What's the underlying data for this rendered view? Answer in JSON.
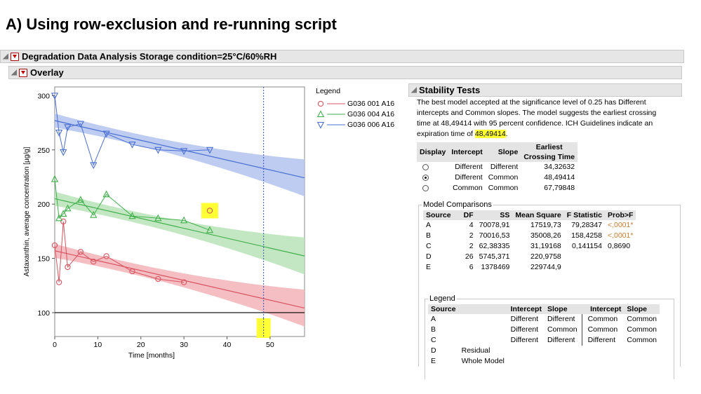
{
  "slide_title": "A) Using row-exclusion and re-running script",
  "report": {
    "title": "Degradation Data Analysis Storage condition=25°C/60%RH",
    "overlay_title": "Overlay"
  },
  "chart_data": {
    "type": "scatter",
    "xlabel": "Time [months]",
    "ylabel": "Astaxanthin, average concentration [µg/g]",
    "xlim": [
      0,
      58
    ],
    "ylim": [
      78,
      308
    ],
    "x_ticks": [
      "0",
      "10",
      "20",
      "30",
      "40",
      "50"
    ],
    "y_ticks": [
      "100",
      "150",
      "200",
      "250",
      "300"
    ],
    "reference_line_y": 100,
    "crossing_time_line_x": 48.49414,
    "highlighted_point": {
      "x": 36,
      "y": 194
    },
    "legend_title": "Legend",
    "legend_position": "right",
    "series": [
      {
        "name": "G036 001 A16",
        "color": "#d9535f",
        "band": "#f2b3b8",
        "marker": "circle",
        "x": [
          0,
          1,
          2,
          3,
          6,
          9,
          12,
          18,
          24,
          30
        ],
        "y": [
          162,
          128,
          184,
          142,
          156,
          147,
          152,
          138,
          131,
          128
        ],
        "fit": {
          "intercept": 157,
          "slope": -0.91
        }
      },
      {
        "name": "G036 004 A16",
        "color": "#3fb04a",
        "band": "#b9e3b8",
        "marker": "triangle-up",
        "x": [
          0,
          1,
          2,
          3,
          6,
          9,
          12,
          18,
          24,
          30,
          36
        ],
        "y": [
          223,
          187,
          191,
          196,
          204,
          190,
          209,
          189,
          187,
          185,
          176
        ],
        "fit": {
          "intercept": 205,
          "slope": -0.91
        }
      },
      {
        "name": "G036 006 A16",
        "color": "#4a6fd3",
        "band": "#b3c3ee",
        "marker": "triangle-down",
        "x": [
          0,
          1,
          2,
          3,
          6,
          9,
          12,
          18,
          24,
          30,
          36
        ],
        "y": [
          300,
          266,
          248,
          271,
          274,
          236,
          265,
          255,
          250,
          249,
          250
        ],
        "fit": {
          "intercept": 277,
          "slope": -0.91
        }
      }
    ]
  },
  "stability": {
    "title": "Stability Tests",
    "description_before": "The best model accepted at the significance level of 0.25 has Different intercepts and Common slopes. The model suggests the earliest crossing time at 48,49414 with 95 percent confidence. ICH Guidelines indicate an expiration time of ",
    "highlight_value": "48,49414",
    "description_after": ".",
    "table_headers": [
      "Display",
      "Intercept",
      "Slope",
      "Earliest",
      "Crossing Time"
    ],
    "rows": [
      {
        "intercept": "Different",
        "slope": "Different",
        "time": "34,32632",
        "selected": false
      },
      {
        "intercept": "Different",
        "slope": "Common",
        "time": "48,49414",
        "selected": true
      },
      {
        "intercept": "Common",
        "slope": "Common",
        "time": "67,79848",
        "selected": false
      }
    ]
  },
  "model_comparisons": {
    "title": "Model Comparisons",
    "headers": [
      "Source",
      "DF",
      "SS",
      "Mean Square",
      "F Statistic",
      "Prob>F"
    ],
    "rows": [
      {
        "source": "A",
        "df": "4",
        "ss": "70078,91",
        "ms": "17519,73",
        "f": "79,28347",
        "p": "<,0001*"
      },
      {
        "source": "B",
        "df": "2",
        "ss": "70016,53",
        "ms": "35008,26",
        "f": "158,4258",
        "p": "<,0001*"
      },
      {
        "source": "C",
        "df": "2",
        "ss": "62,38335",
        "ms": "31,19168",
        "f": "0,141154",
        "p": "0,8690"
      },
      {
        "source": "D",
        "df": "26",
        "ss": "5745,371",
        "ms": "220,9758",
        "f": "",
        "p": ""
      },
      {
        "source": "E",
        "df": "6",
        "ss": "1378469",
        "ms": "229744,9",
        "f": "",
        "p": ""
      }
    ]
  },
  "mc_legend": {
    "title": "Legend",
    "headers": [
      "Source",
      "",
      "Intercept",
      "Slope",
      "Intercept",
      "Slope"
    ],
    "rows": [
      {
        "source": "A",
        "label": "",
        "i1": "Different",
        "s1": "Different",
        "i2": "Common",
        "s2": "Common"
      },
      {
        "source": "B",
        "label": "",
        "i1": "Different",
        "s1": "Common",
        "i2": "Common",
        "s2": "Common"
      },
      {
        "source": "C",
        "label": "",
        "i1": "Different",
        "s1": "Different",
        "i2": "Different",
        "s2": "Common"
      },
      {
        "source": "D",
        "label": "Residual",
        "i1": "",
        "s1": "",
        "i2": "",
        "s2": ""
      },
      {
        "source": "E",
        "label": "Whole Model",
        "i1": "",
        "s1": "",
        "i2": "",
        "s2": ""
      }
    ]
  }
}
